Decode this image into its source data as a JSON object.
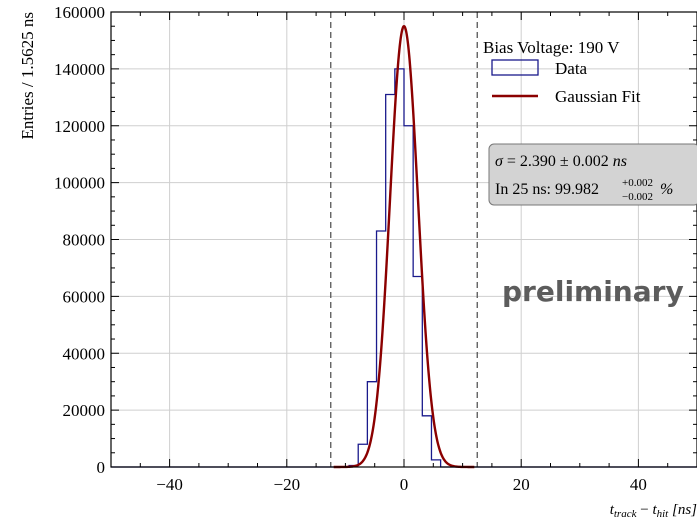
{
  "chart_data": {
    "type": "histogram",
    "ylabel": "Entries / 1.5625 ns",
    "xlabel_parts": {
      "t1": "t",
      "s1": "track",
      "op": " − ",
      "t2": "t",
      "s2": "hit",
      "unit": " [ns]"
    },
    "xlim": [
      -50,
      50
    ],
    "ylim": [
      0,
      160000
    ],
    "xticks": [
      -40,
      -20,
      0,
      20,
      40
    ],
    "yticks": [
      0,
      20000,
      40000,
      60000,
      80000,
      100000,
      120000,
      140000,
      160000
    ],
    "grid": true,
    "bin_width": 1.5625,
    "bins": [
      {
        "x0": -10.9375,
        "value": 0
      },
      {
        "x0": -9.375,
        "value": 500
      },
      {
        "x0": -7.8125,
        "value": 8000
      },
      {
        "x0": -6.25,
        "value": 30000
      },
      {
        "x0": -4.6875,
        "value": 83000
      },
      {
        "x0": -3.125,
        "value": 131000
      },
      {
        "x0": -1.5625,
        "value": 140000
      },
      {
        "x0": 0,
        "value": 120000
      },
      {
        "x0": 1.5625,
        "value": 67000
      },
      {
        "x0": 3.125,
        "value": 18000
      },
      {
        "x0": 4.6875,
        "value": 2500
      },
      {
        "x0": 6.25,
        "value": 0
      }
    ],
    "fit": {
      "amplitude": 155000,
      "mean": 0.0,
      "sigma": 2.39,
      "range": [
        -12,
        12
      ]
    },
    "vlines": [
      -12.5,
      12.5
    ],
    "legend": {
      "position": "top-right",
      "title": "Bias Voltage: 190 V",
      "entries": [
        {
          "label": "Data",
          "style": "box",
          "color": "#1a1a8c"
        },
        {
          "label": "Gaussian Fit",
          "style": "line",
          "color": "#8b0000"
        }
      ]
    },
    "fit_box": {
      "sigma_symbol": "σ",
      "sigma_text": " = 2.390 ± 0.002 ",
      "sigma_unit": "ns",
      "eff_text": "In 25 ns: 99.982",
      "eff_sup": "+0.002",
      "eff_sub": "−0.002",
      "eff_unit": "%"
    },
    "watermark": "preliminary",
    "colors": {
      "data": "#1a1a8c",
      "fit": "#8b0000",
      "grid": "#cfcfcf",
      "vline": "#555555",
      "watermark": "#5c5c5c",
      "box_fill": "#d3d3d3"
    }
  }
}
